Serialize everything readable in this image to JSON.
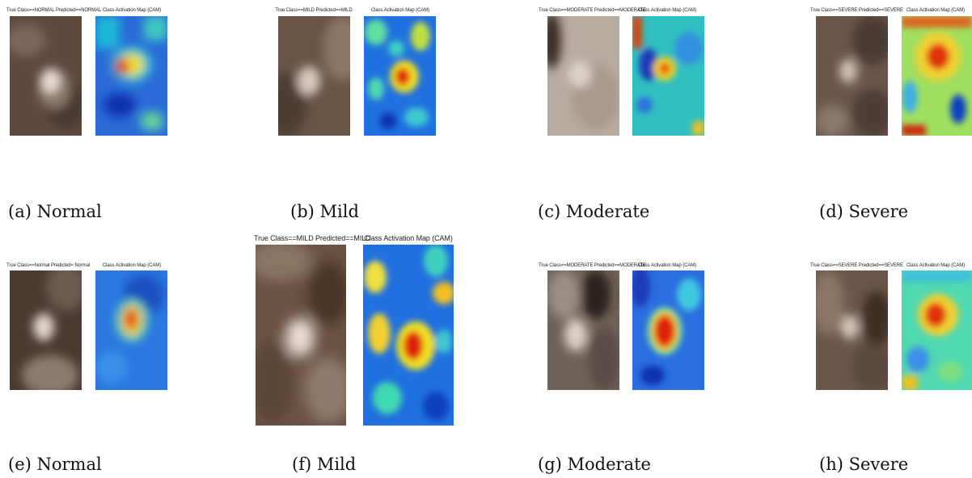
{
  "figure": {
    "panels": [
      {
        "id": "a",
        "caption": "(a) Normal",
        "left_title": "True Class==NORMAL Predicted==NORMAL",
        "right_title": "Class Activation Map (CAM)"
      },
      {
        "id": "b",
        "caption": "(b) Mild",
        "left_title": "True Class==MILD Predicted==MILD",
        "right_title": "Class Activation Map (CAM)"
      },
      {
        "id": "c",
        "caption": "(c) Moderate",
        "left_title": "True Class==MODERATE Predicted==MODERATE",
        "right_title": "Class Activation Map (CAM)"
      },
      {
        "id": "d",
        "caption": "(d) Severe",
        "left_title": "True Class==SEVERE Predicted==SEVERE",
        "right_title": "Class Activation Map (CAM)"
      },
      {
        "id": "e",
        "caption": "(e) Normal",
        "left_title": "True Class==Normal Predicted= Normal",
        "right_title": "Class Activation Map (CAM)"
      },
      {
        "id": "f",
        "caption": "(f) Mild",
        "left_title": "True Class==MILD Predicted==MILD",
        "right_title": "Class Activation Map (CAM)"
      },
      {
        "id": "g",
        "caption": "(g) Moderate",
        "left_title": "True Class==MODERATE Predicted==MODERATE",
        "right_title": "Class Activation Map (CAM)"
      },
      {
        "id": "h",
        "caption": "(h) Severe",
        "left_title": "True Class==SEVERE Predicted==SEVERE",
        "right_title": "Class Activation Map (CAM)"
      }
    ]
  }
}
